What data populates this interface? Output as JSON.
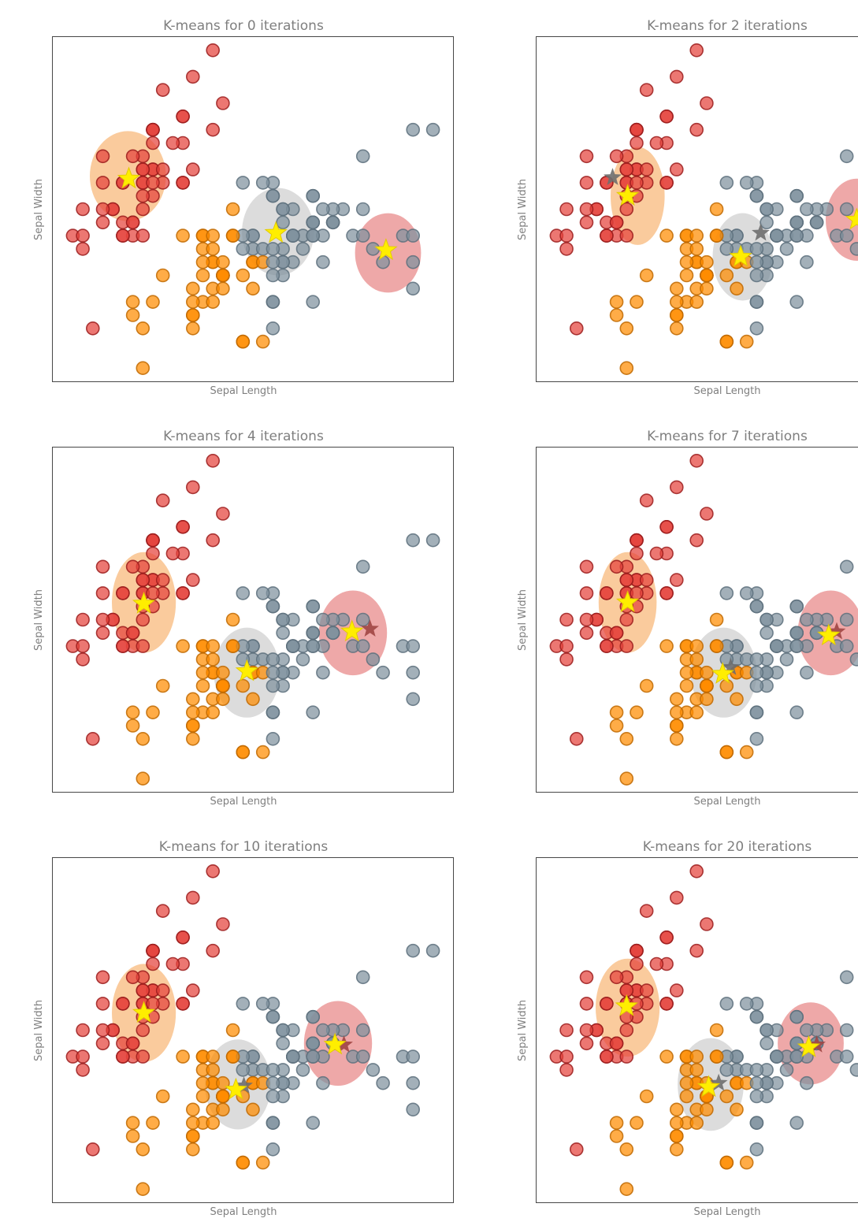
{
  "chart_data": {
    "type": "scatter",
    "xlabel": "Sepal Length",
    "ylabel": "Sepal Width",
    "xlim": [
      4.1,
      8.1
    ],
    "ylim": [
      1.9,
      4.5
    ],
    "grid": false,
    "legend": "none",
    "cluster_colors": {
      "r": {
        "name": "red",
        "fill": "#E5433B",
        "stroke": "#9B1C1C"
      },
      "o": {
        "name": "orange",
        "fill": "#FF8C00",
        "stroke": "#BF6900"
      },
      "g": {
        "name": "gray",
        "fill": "#7F929E",
        "stroke": "#5D707C"
      }
    },
    "ellipse_colors": {
      "orange": "#F6A04D",
      "gray": "#BFBFBF",
      "red": "#E06060"
    },
    "star_colors": {
      "current": "#FFEE00",
      "prev_gray": "#6E6E6E",
      "prev_red": "#A04543"
    },
    "points": [
      [
        5.1,
        3.5,
        "r"
      ],
      [
        4.9,
        3.0,
        "r"
      ],
      [
        4.7,
        3.2,
        "r"
      ],
      [
        4.6,
        3.1,
        "r"
      ],
      [
        5.0,
        3.6,
        "r"
      ],
      [
        5.4,
        3.9,
        "r"
      ],
      [
        4.6,
        3.4,
        "r"
      ],
      [
        5.0,
        3.4,
        "r"
      ],
      [
        4.4,
        2.9,
        "r"
      ],
      [
        4.9,
        3.1,
        "r"
      ],
      [
        5.4,
        3.7,
        "r"
      ],
      [
        4.8,
        3.4,
        "r"
      ],
      [
        4.8,
        3.0,
        "r"
      ],
      [
        4.3,
        3.0,
        "r"
      ],
      [
        5.8,
        4.0,
        "r"
      ],
      [
        5.7,
        4.4,
        "r"
      ],
      [
        5.4,
        3.9,
        "r"
      ],
      [
        5.1,
        3.5,
        "r"
      ],
      [
        5.7,
        3.8,
        "r"
      ],
      [
        5.1,
        3.8,
        "r"
      ],
      [
        5.4,
        3.4,
        "r"
      ],
      [
        5.1,
        3.7,
        "r"
      ],
      [
        4.6,
        3.6,
        "r"
      ],
      [
        5.1,
        3.3,
        "r"
      ],
      [
        4.8,
        3.4,
        "r"
      ],
      [
        5.0,
        3.0,
        "r"
      ],
      [
        5.0,
        3.4,
        "r"
      ],
      [
        5.2,
        3.5,
        "r"
      ],
      [
        5.2,
        3.4,
        "r"
      ],
      [
        4.7,
        3.2,
        "r"
      ],
      [
        4.8,
        3.1,
        "r"
      ],
      [
        5.4,
        3.4,
        "r"
      ],
      [
        5.2,
        4.1,
        "r"
      ],
      [
        5.5,
        4.2,
        "r"
      ],
      [
        4.9,
        3.1,
        "r"
      ],
      [
        5.0,
        3.2,
        "r"
      ],
      [
        5.5,
        3.5,
        "r"
      ],
      [
        4.9,
        3.6,
        "r"
      ],
      [
        4.4,
        3.0,
        "r"
      ],
      [
        5.1,
        3.4,
        "r"
      ],
      [
        5.0,
        3.5,
        "r"
      ],
      [
        4.5,
        2.3,
        "r"
      ],
      [
        4.4,
        3.2,
        "r"
      ],
      [
        5.0,
        3.5,
        "r"
      ],
      [
        5.1,
        3.8,
        "r"
      ],
      [
        4.8,
        3.0,
        "r"
      ],
      [
        5.1,
        3.8,
        "r"
      ],
      [
        4.6,
        3.2,
        "r"
      ],
      [
        5.3,
        3.7,
        "r"
      ],
      [
        5.0,
        3.3,
        "r"
      ],
      [
        7.0,
        3.2,
        "g"
      ],
      [
        6.4,
        3.2,
        "g"
      ],
      [
        6.9,
        3.1,
        "g"
      ],
      [
        5.5,
        2.3,
        "o"
      ],
      [
        6.5,
        2.8,
        "g"
      ],
      [
        5.7,
        2.8,
        "o"
      ],
      [
        6.3,
        3.3,
        "g"
      ],
      [
        4.9,
        2.4,
        "o"
      ],
      [
        6.6,
        2.9,
        "g"
      ],
      [
        5.2,
        2.7,
        "o"
      ],
      [
        5.0,
        2.0,
        "o"
      ],
      [
        5.9,
        3.0,
        "o"
      ],
      [
        6.0,
        2.2,
        "o"
      ],
      [
        6.1,
        2.9,
        "g"
      ],
      [
        5.6,
        2.9,
        "o"
      ],
      [
        6.7,
        3.1,
        "g"
      ],
      [
        5.6,
        3.0,
        "o"
      ],
      [
        5.8,
        2.7,
        "o"
      ],
      [
        6.2,
        2.2,
        "o"
      ],
      [
        5.6,
        2.5,
        "o"
      ],
      [
        5.9,
        3.2,
        "o"
      ],
      [
        6.1,
        2.8,
        "o"
      ],
      [
        6.3,
        2.5,
        "g"
      ],
      [
        6.1,
        2.8,
        "o"
      ],
      [
        6.4,
        2.9,
        "g"
      ],
      [
        6.6,
        3.0,
        "g"
      ],
      [
        6.8,
        2.8,
        "g"
      ],
      [
        6.7,
        3.0,
        "g"
      ],
      [
        6.0,
        2.9,
        "g"
      ],
      [
        5.7,
        2.6,
        "o"
      ],
      [
        5.5,
        2.4,
        "o"
      ],
      [
        5.5,
        2.4,
        "o"
      ],
      [
        5.8,
        2.7,
        "o"
      ],
      [
        6.0,
        2.7,
        "o"
      ],
      [
        5.4,
        3.0,
        "o"
      ],
      [
        6.0,
        3.4,
        "g"
      ],
      [
        6.7,
        3.1,
        "g"
      ],
      [
        6.3,
        2.3,
        "g"
      ],
      [
        5.6,
        3.0,
        "o"
      ],
      [
        5.5,
        2.5,
        "o"
      ],
      [
        5.5,
        2.6,
        "o"
      ],
      [
        6.1,
        3.0,
        "g"
      ],
      [
        5.8,
        2.6,
        "o"
      ],
      [
        5.0,
        2.3,
        "o"
      ],
      [
        5.6,
        2.7,
        "o"
      ],
      [
        5.7,
        3.0,
        "o"
      ],
      [
        5.7,
        2.9,
        "o"
      ],
      [
        6.2,
        2.9,
        "g"
      ],
      [
        5.1,
        2.5,
        "o"
      ],
      [
        5.7,
        2.8,
        "o"
      ],
      [
        6.3,
        3.3,
        "g"
      ],
      [
        5.8,
        2.7,
        "o"
      ],
      [
        7.1,
        3.0,
        "g"
      ],
      [
        6.3,
        2.9,
        "g"
      ],
      [
        6.5,
        3.0,
        "g"
      ],
      [
        7.6,
        3.0,
        "g"
      ],
      [
        4.9,
        2.5,
        "o"
      ],
      [
        7.3,
        2.9,
        "g"
      ],
      [
        6.7,
        2.5,
        "g"
      ],
      [
        7.2,
        3.6,
        "g"
      ],
      [
        6.5,
        3.2,
        "g"
      ],
      [
        6.4,
        2.7,
        "g"
      ],
      [
        6.8,
        3.0,
        "g"
      ],
      [
        5.7,
        2.5,
        "o"
      ],
      [
        5.8,
        2.8,
        "o"
      ],
      [
        6.4,
        3.2,
        "g"
      ],
      [
        6.5,
        3.0,
        "g"
      ],
      [
        7.7,
        3.8,
        "g"
      ],
      [
        7.7,
        2.6,
        "g"
      ],
      [
        6.0,
        2.2,
        "o"
      ],
      [
        6.9,
        3.2,
        "g"
      ],
      [
        5.6,
        2.8,
        "o"
      ],
      [
        7.7,
        2.8,
        "g"
      ],
      [
        6.3,
        2.7,
        "g"
      ],
      [
        6.7,
        3.3,
        "g"
      ],
      [
        7.2,
        3.2,
        "g"
      ],
      [
        6.2,
        2.8,
        "o"
      ],
      [
        6.1,
        3.0,
        "g"
      ],
      [
        6.4,
        2.8,
        "g"
      ],
      [
        7.2,
        3.0,
        "g"
      ],
      [
        7.4,
        2.8,
        "g"
      ],
      [
        7.9,
        3.8,
        "g"
      ],
      [
        6.4,
        2.8,
        "g"
      ],
      [
        6.3,
        2.8,
        "g"
      ],
      [
        6.1,
        2.6,
        "o"
      ],
      [
        7.7,
        3.0,
        "g"
      ],
      [
        6.3,
        3.4,
        "g"
      ],
      [
        6.4,
        3.1,
        "g"
      ],
      [
        6.0,
        3.0,
        "g"
      ],
      [
        6.9,
        3.1,
        "g"
      ],
      [
        6.7,
        3.1,
        "g"
      ],
      [
        6.9,
        3.1,
        "g"
      ],
      [
        5.8,
        2.7,
        "o"
      ],
      [
        6.8,
        3.2,
        "g"
      ],
      [
        6.7,
        3.3,
        "g"
      ],
      [
        6.7,
        3.0,
        "g"
      ],
      [
        6.3,
        2.5,
        "g"
      ],
      [
        6.5,
        3.0,
        "g"
      ],
      [
        6.2,
        3.4,
        "g"
      ],
      [
        5.9,
        3.0,
        "o"
      ]
    ],
    "subplots": [
      {
        "title": "K-means for 0 iterations",
        "iterations": 0,
        "ellipses": [
          {
            "color": "orange",
            "cx": 4.85,
            "cy": 3.45,
            "rx": 0.38,
            "ry": 0.34
          },
          {
            "color": "gray",
            "cx": 6.35,
            "cy": 3.03,
            "rx": 0.36,
            "ry": 0.33
          },
          {
            "color": "red",
            "cx": 7.45,
            "cy": 2.87,
            "rx": 0.33,
            "ry": 0.3
          }
        ],
        "centroids": [
          {
            "x": 4.86,
            "y": 3.43
          },
          {
            "x": 6.33,
            "y": 3.02
          },
          {
            "x": 7.43,
            "y": 2.89
          }
        ],
        "prev_centroids": []
      },
      {
        "title": "K-means for 2 iterations",
        "iterations": 2,
        "ellipses": [
          {
            "color": "orange",
            "cx": 5.11,
            "cy": 3.3,
            "rx": 0.27,
            "ry": 0.37
          },
          {
            "color": "gray",
            "cx": 6.16,
            "cy": 2.84,
            "rx": 0.3,
            "ry": 0.33
          },
          {
            "color": "red",
            "cx": 7.3,
            "cy": 3.12,
            "rx": 0.31,
            "ry": 0.31
          }
        ],
        "centroids": [
          {
            "x": 5.01,
            "y": 3.3
          },
          {
            "x": 6.14,
            "y": 2.84
          },
          {
            "x": 7.3,
            "y": 3.12
          }
        ],
        "prev_centroids": [
          {
            "x": 4.86,
            "y": 3.44,
            "shade": "gray"
          },
          {
            "x": 6.34,
            "y": 3.02,
            "shade": "gray"
          },
          {
            "x": 7.43,
            "y": 2.9,
            "shade": "red"
          }
        ]
      },
      {
        "title": "K-means for 4 iterations",
        "iterations": 4,
        "ellipses": [
          {
            "color": "orange",
            "cx": 5.01,
            "cy": 3.33,
            "rx": 0.32,
            "ry": 0.38
          },
          {
            "color": "gray",
            "cx": 6.04,
            "cy": 2.8,
            "rx": 0.33,
            "ry": 0.34
          },
          {
            "color": "red",
            "cx": 7.1,
            "cy": 3.1,
            "rx": 0.34,
            "ry": 0.32
          }
        ],
        "centroids": [
          {
            "x": 5.01,
            "y": 3.32
          },
          {
            "x": 6.04,
            "y": 2.81
          },
          {
            "x": 7.09,
            "y": 3.11
          }
        ],
        "prev_centroids": [
          {
            "x": 7.27,
            "y": 3.13,
            "shade": "red"
          }
        ]
      },
      {
        "title": "K-means for 7 iterations",
        "iterations": 7,
        "ellipses": [
          {
            "color": "orange",
            "cx": 5.01,
            "cy": 3.33,
            "rx": 0.29,
            "ry": 0.38
          },
          {
            "color": "gray",
            "cx": 5.97,
            "cy": 2.8,
            "rx": 0.33,
            "ry": 0.34
          },
          {
            "color": "red",
            "cx": 7.04,
            "cy": 3.1,
            "rx": 0.33,
            "ry": 0.32
          }
        ],
        "centroids": [
          {
            "x": 5.01,
            "y": 3.33
          },
          {
            "x": 5.96,
            "y": 2.79
          },
          {
            "x": 7.02,
            "y": 3.08
          }
        ],
        "prev_centroids": [
          {
            "x": 6.04,
            "y": 2.84,
            "shade": "gray"
          },
          {
            "x": 7.1,
            "y": 3.11,
            "shade": "red"
          }
        ]
      },
      {
        "title": "K-means for 10 iterations",
        "iterations": 10,
        "ellipses": [
          {
            "color": "orange",
            "cx": 5.01,
            "cy": 3.33,
            "rx": 0.32,
            "ry": 0.37
          },
          {
            "color": "gray",
            "cx": 5.95,
            "cy": 2.79,
            "rx": 0.33,
            "ry": 0.34
          },
          {
            "color": "red",
            "cx": 6.95,
            "cy": 3.1,
            "rx": 0.34,
            "ry": 0.32
          }
        ],
        "centroids": [
          {
            "x": 5.01,
            "y": 3.33
          },
          {
            "x": 5.93,
            "y": 2.75
          },
          {
            "x": 6.92,
            "y": 3.09
          }
        ],
        "prev_centroids": [
          {
            "x": 6.01,
            "y": 2.78,
            "shade": "gray"
          },
          {
            "x": 7.01,
            "y": 3.09,
            "shade": "red"
          }
        ]
      },
      {
        "title": "K-means for 20 iterations",
        "iterations": 20,
        "ellipses": [
          {
            "color": "orange",
            "cx": 5.01,
            "cy": 3.37,
            "rx": 0.32,
            "ry": 0.37
          },
          {
            "color": "gray",
            "cx": 5.84,
            "cy": 2.79,
            "rx": 0.33,
            "ry": 0.35
          },
          {
            "color": "red",
            "cx": 6.84,
            "cy": 3.1,
            "rx": 0.33,
            "ry": 0.31
          }
        ],
        "centroids": [
          {
            "x": 5.0,
            "y": 3.38
          },
          {
            "x": 5.82,
            "y": 2.77
          },
          {
            "x": 6.82,
            "y": 3.07
          }
        ],
        "prev_centroids": [
          {
            "x": 5.92,
            "y": 2.8,
            "shade": "gray"
          },
          {
            "x": 6.9,
            "y": 3.09,
            "shade": "red"
          }
        ]
      }
    ]
  }
}
